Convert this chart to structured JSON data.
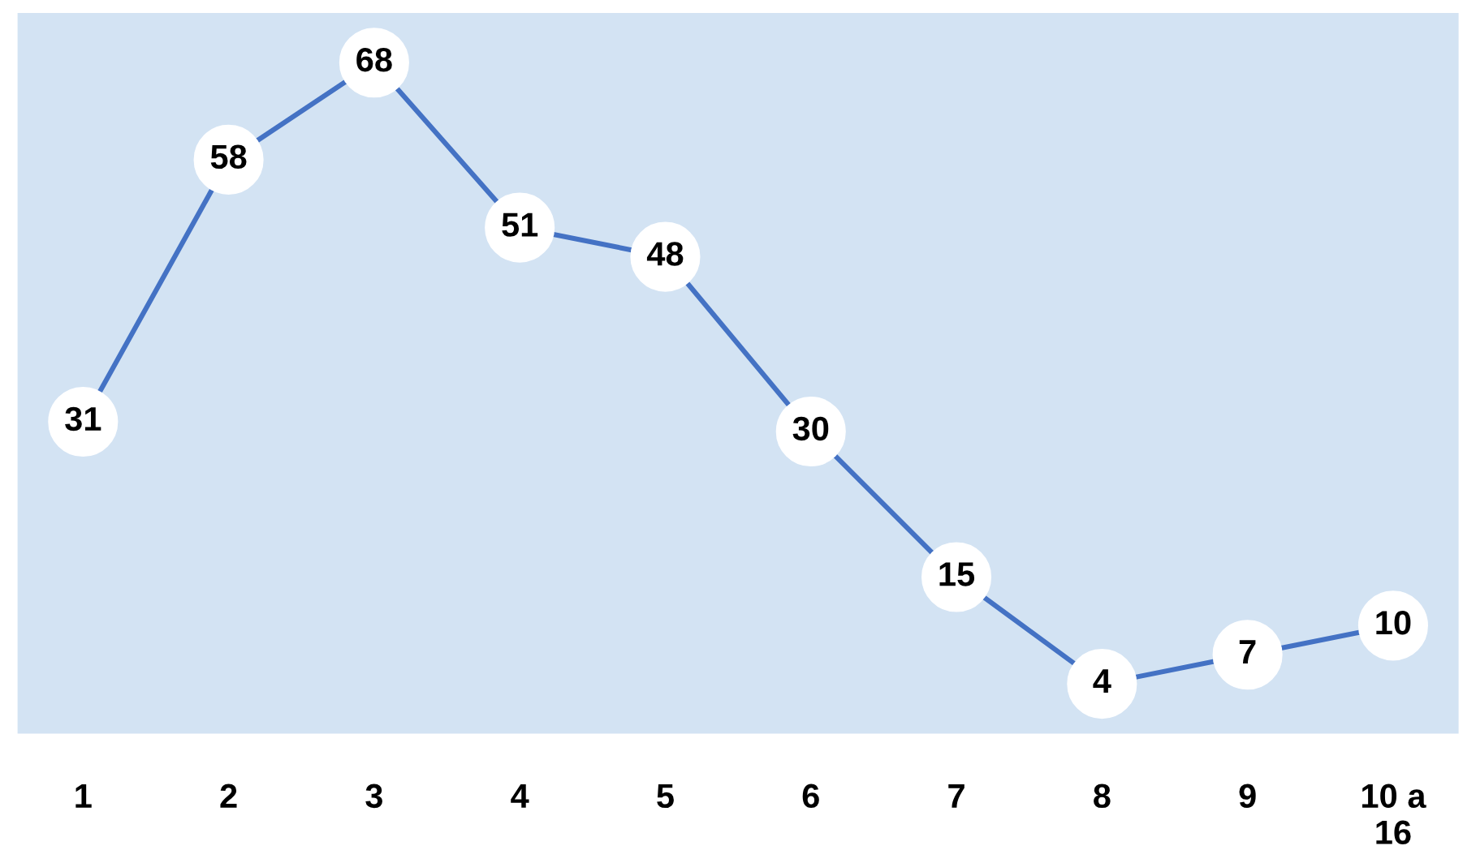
{
  "chart_data": {
    "type": "line",
    "categories": [
      "1",
      "2",
      "3",
      "4",
      "5",
      "6",
      "7",
      "8",
      "9",
      "10 a\n16"
    ],
    "series": [
      {
        "color": "#4472c4",
        "values": [
          31,
          58,
          68,
          51,
          48,
          30,
          15,
          4,
          7,
          10
        ]
      }
    ],
    "data_labels": true,
    "marker": "circle",
    "line_style": "solid",
    "grid": false,
    "legend": false,
    "tick_labels": "x"
  }
}
